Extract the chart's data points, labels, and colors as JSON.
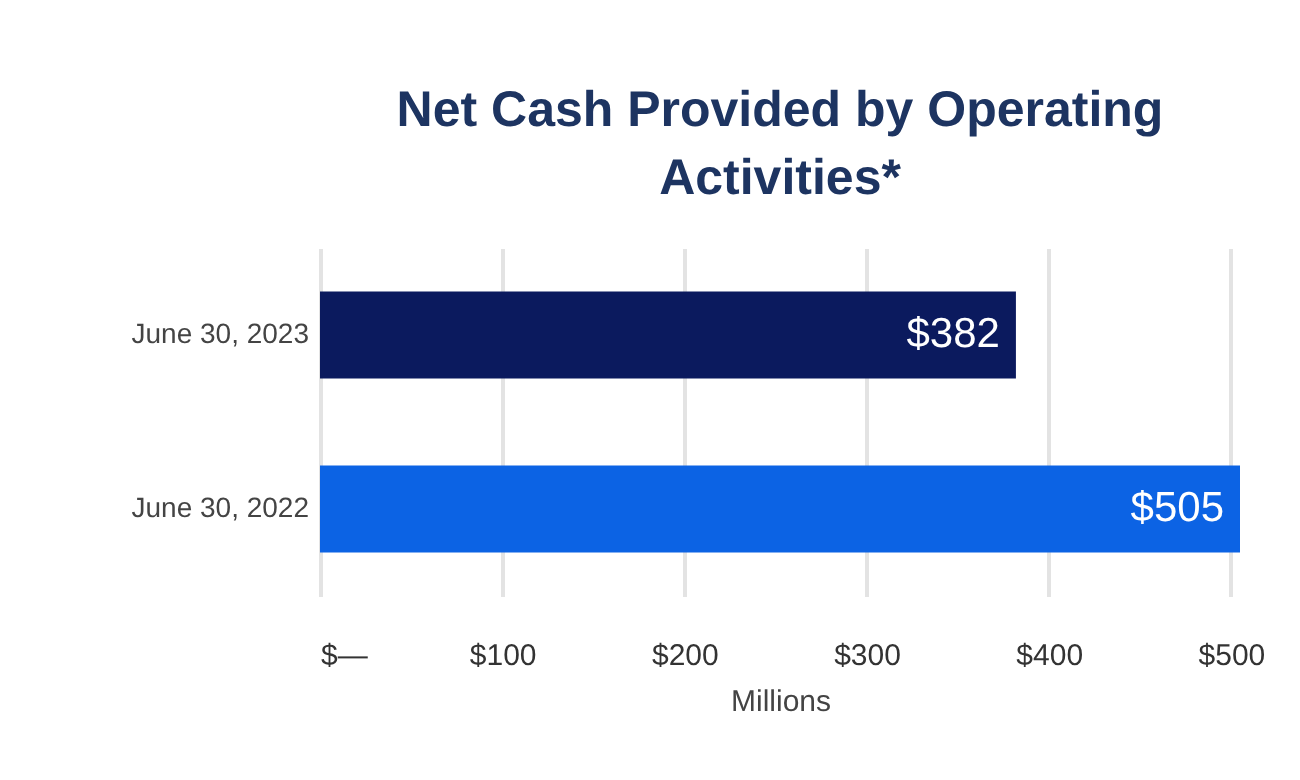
{
  "chart_data": {
    "type": "bar",
    "orientation": "horizontal",
    "title": "Net Cash Provided by Operating Activities*",
    "xlabel": "Millions",
    "categories": [
      "June 30, 2023",
      "June 30, 2022"
    ],
    "values": [
      382,
      505
    ],
    "colors": [
      "#0b1a5e",
      "#0c63e4"
    ],
    "value_labels": [
      "$382",
      "$505"
    ],
    "xlim": [
      0,
      505
    ],
    "xticks": [
      {
        "value": 0,
        "label": "$—"
      },
      {
        "value": 100,
        "label": "$100"
      },
      {
        "value": 200,
        "label": "$200"
      },
      {
        "value": 300,
        "label": "$300"
      },
      {
        "value": 400,
        "label": "$400"
      },
      {
        "value": 500,
        "label": "$500"
      }
    ],
    "grid": "x",
    "legend": false
  }
}
